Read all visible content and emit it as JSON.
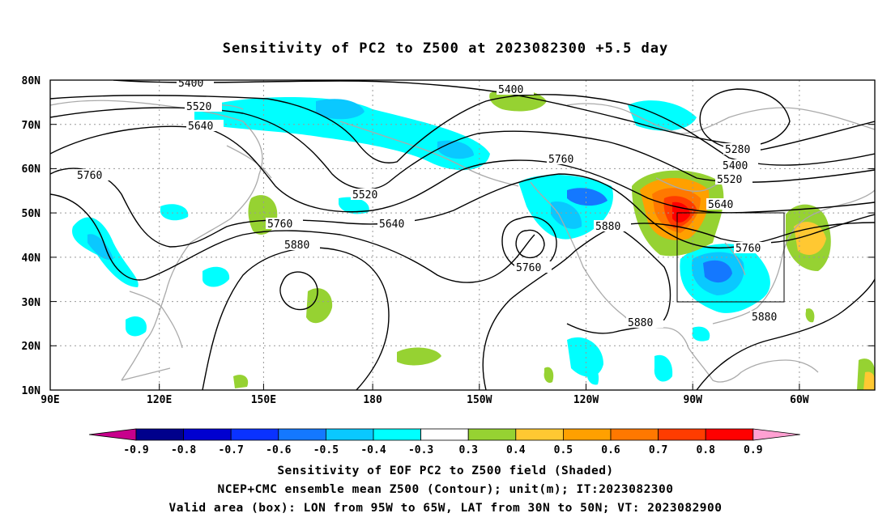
{
  "title": "Sensitivity of PC2 to Z500 at 2023082300 +5.5 day",
  "lat_ticks": [
    "80N",
    "70N",
    "60N",
    "50N",
    "40N",
    "30N",
    "20N",
    "10N"
  ],
  "lon_ticks": [
    "90E",
    "120E",
    "150E",
    "180",
    "150W",
    "120W",
    "90W",
    "60W"
  ],
  "contour_labels": [
    {
      "text": "5400",
      "id": "c5400a"
    },
    {
      "text": "5400",
      "id": "c5400b"
    },
    {
      "text": "5400",
      "id": "c5400c"
    },
    {
      "text": "5520",
      "id": "c5520a"
    },
    {
      "text": "5520",
      "id": "c5520b"
    },
    {
      "text": "5520",
      "id": "c5520c"
    },
    {
      "text": "5640",
      "id": "c5640a"
    },
    {
      "text": "5640",
      "id": "c5640b"
    },
    {
      "text": "5640",
      "id": "c5640c"
    },
    {
      "text": "5760",
      "id": "c5760a"
    },
    {
      "text": "5760",
      "id": "c5760b"
    },
    {
      "text": "5760",
      "id": "c5760c"
    },
    {
      "text": "5760",
      "id": "c5760d"
    },
    {
      "text": "5760",
      "id": "c5760e"
    },
    {
      "text": "5880",
      "id": "c5880a"
    },
    {
      "text": "5880",
      "id": "c5880b"
    },
    {
      "text": "5880",
      "id": "c5880c"
    },
    {
      "text": "5880",
      "id": "c5880d"
    },
    {
      "text": "5280",
      "id": "c5280a"
    }
  ],
  "colorbar": {
    "labels": [
      "-0.9",
      "-0.8",
      "-0.7",
      "-0.6",
      "-0.5",
      "-0.4",
      "-0.3",
      "0.3",
      "0.4",
      "0.5",
      "0.6",
      "0.7",
      "0.8",
      "0.9"
    ],
    "colors": [
      "#00008c",
      "#0000d0",
      "#0a32ff",
      "#1478ff",
      "#0ac8ff",
      "#00ffff",
      "#ffffff",
      "#96d232",
      "#ffc832",
      "#ffa000",
      "#ff7800",
      "#ff3c00",
      "#ff0000"
    ],
    "low_end_color": "#c8008c",
    "high_end_color": "#ffa0d2"
  },
  "captions": {
    "line1": "Sensitivity of EOF PC2 to Z500 field (Shaded)",
    "line2": "NCEP+CMC ensemble mean Z500 (Contour); unit(m); IT:2023082300",
    "line3": "Valid area (box): LON from 95W to 65W, LAT from 30N to 50N; VT: 2023082900"
  }
}
